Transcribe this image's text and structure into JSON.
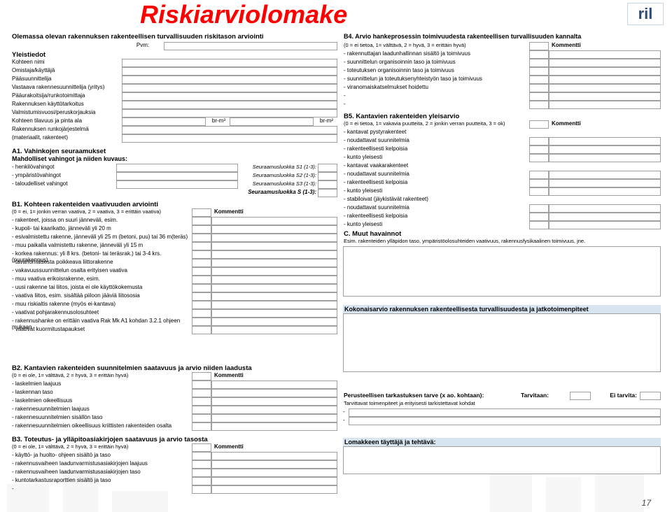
{
  "title": "Riskiarviolomake",
  "logo": "ril",
  "page_number": "17",
  "left_header": "Olemassa olevan rakennuksen rakenteellisen turvallisuuden riskitason arviointi",
  "pvm_label": "Pvm:",
  "yleistiedot": {
    "header": "Yleistiedot",
    "rows": [
      "Kohteen nimi",
      "Omistaja/käyttäjä",
      "Pääsuunnittelija",
      "Vastaava rakennesuunnittelija (yritys)",
      "Pääurakoitsija/runkotoimittaja",
      "Rakennuksen käyttötarkoitus",
      "Valmistumisvuosi/peruskorjauksia"
    ],
    "kohteen": "Kohteen tilavuus ja pinta ala",
    "brm3": "br-m³",
    "brm2": "br-m²",
    "runko1": "Rakennuksen runkojärjestelmä",
    "runko2": "(materiaalit, rakenteet)"
  },
  "a1": {
    "header": "A1. Vahinkojen seuraamukset",
    "sub": "Mahdolliset vahingot ja niiden kuvaus:",
    "rows": [
      {
        "l": "- henkilövahingot",
        "r": "Seuraamusluokka S1 (1-3):"
      },
      {
        "l": "- ympäristövahingot",
        "r": "Seuraamusluokka S2 (1-3):"
      },
      {
        "l": "- taloudelliset vahingot",
        "r": "Seuraamusluokka S3 (1-3):"
      }
    ],
    "sum": "Seuraamusluokka S (1-3):"
  },
  "b1": {
    "header": "B1. Kohteen rakenteiden vaativuuden arviointi",
    "scale": "(0 = ei, 1= jonkin verran vaativa, 2 = vaativa, 3 = erittäin vaativa)",
    "kommentti": "Kommentti",
    "rows": [
      "- rakenteet, joissa on suuri jänneväli, esim.",
      "   - kupoli- tai kaarikatto, jänneväli yli 20 m",
      "   - esivalmistettu rakenne, jänneväli yli 25 m (betoni, puu) tai 36 m(teräs)",
      "   - muu paikalla valmistettu rakenne, jänneväli yli 15 m",
      "- korkea rakennus: yli 8 krs. (betoni- tai teräsrak.) tai 3-4 krs. (puurakennus)",
      "- tavanomaisesta poikkeava liittorakenne",
      "- vakavuussuunnittelun osalta erityisen vaativa",
      "- muu vaativa erikoisrakenne, esim.",
      "   - uusi rakenne tai liitos, joista ei ole käyttökokemusta",
      "   - vaativa liitos, esim. sisältää piiloon jääviä liitososia",
      "- muu riskialtis rakenne (myös ei-kantava)",
      "- vaativat pohjarakennusolosuhteet",
      "- rakennushanke on erittäin vaativa Rak Mk A1 kohdan 3.2.1 ohjeen mukaan",
      "- vaativat kuormitustapaukset"
    ]
  },
  "b2": {
    "header": "B2. Kantavien rakenteiden suunnitelmien saatavuus ja arvio niiden laadusta",
    "scale": "(0 = ei ole, 1= välttävä, 2 = hyvä, 3 = erittäin hyvä)",
    "kommentti": "Kommentti",
    "rows": [
      "- laskelmien laajuus",
      "- laskennan taso",
      "- laskelmien oikeellisuus",
      "- rakennesuunnitelmien laajuus",
      "- rakennesuunnitelmien sisällön taso",
      "- rakennesuunnitelmien oikeellisuus kriittisten rakenteiden osalta"
    ]
  },
  "b3": {
    "header": "B3. Toteutus- ja ylläpitoasiakirjojen saatavuus ja arvio tasosta",
    "scale": "(0 = ei ole, 1= välttävä, 2 = hyvä, 3 = erittäin hyvä)",
    "kommentti": "Kommentti",
    "rows": [
      "- käyttö- ja huolto- ohjeen sisältö ja taso",
      "- rakennusvaiheen laadunvarmistusasiakirjojen laajuus",
      "- rakennusvaiheen laadunvarmistusasiakirjojen taso",
      "- kuntotarkastusraporttien sisältö ja taso",
      "-"
    ]
  },
  "b4": {
    "header": "B4. Arvio hankeprosessin toimivuudesta rakenteellisen turvallisuuden kannalta",
    "scale": "(0 = ei tietoa, 1= välttävä, 2 = hyvä, 3 = erittäin hyvä)",
    "kommentti": "Kommentti",
    "rows": [
      "- rakennuttajan laadunhallinnan sisältö ja toimivuus",
      "- suunnittelun organisoinnin taso ja toimivuus",
      "- toteutuksen organisoinnin taso ja toimivuus",
      "- suunnittelun ja toteutuksenyhteistyön taso ja toimivuus",
      "- viranomaiskatselmukset hoidettu",
      "-",
      "-"
    ]
  },
  "b5": {
    "header": "B5. Kantavien rakenteiden yleisarvio",
    "scale": "(0 = ei tietoa, 1= vakavia puutteita, 2 = jonkin verran puutteita, 3 = ok)",
    "kommentti": "Kommentti",
    "groups": [
      {
        "h": "- kantavat pystyrakenteet",
        "items": [
          "   - noudattavat suunnitelmia",
          "   - rakenteellisesti kelpoisia",
          "   - kunto yleisesti"
        ]
      },
      {
        "h": "- kantavat vaakarakenteet",
        "items": [
          "   - noudattavat suunnitelmia",
          "   - rakenteellisesti kelpoisia",
          "   - kunto yleisesti"
        ]
      },
      {
        "h": "- stabiloivat (jäykistävät rakenteet)",
        "items": [
          "   - noudattavat suunnitelmia",
          "   - rakenteellisesti kelpoisia",
          "   - kunto yleisesti"
        ]
      }
    ]
  },
  "c": {
    "header": "C. Muut havainnot",
    "sub": "Esim. rakenteiden ylläpidon taso, ympäristöolosuhteiden vaativuus, rakennusfysikaalinen toimivuus, jne."
  },
  "kokon": "Kokonaisarvio rakennuksen rakenteellisesta turvallisuudesta ja jatkotoimenpiteet",
  "perust": {
    "header": "Perusteellisen tarkastuksen tarve (x ao. kohtaan):",
    "tarv": "Tarvitaan:",
    "eitarv": "Ei tarvita:",
    "sub": "Tarvittavat toimenpiteet ja erityisesti tarkistettavat kohdat",
    "dash": "-"
  },
  "lomak": "Lomakkeen täyttäjä ja tehtävä:"
}
